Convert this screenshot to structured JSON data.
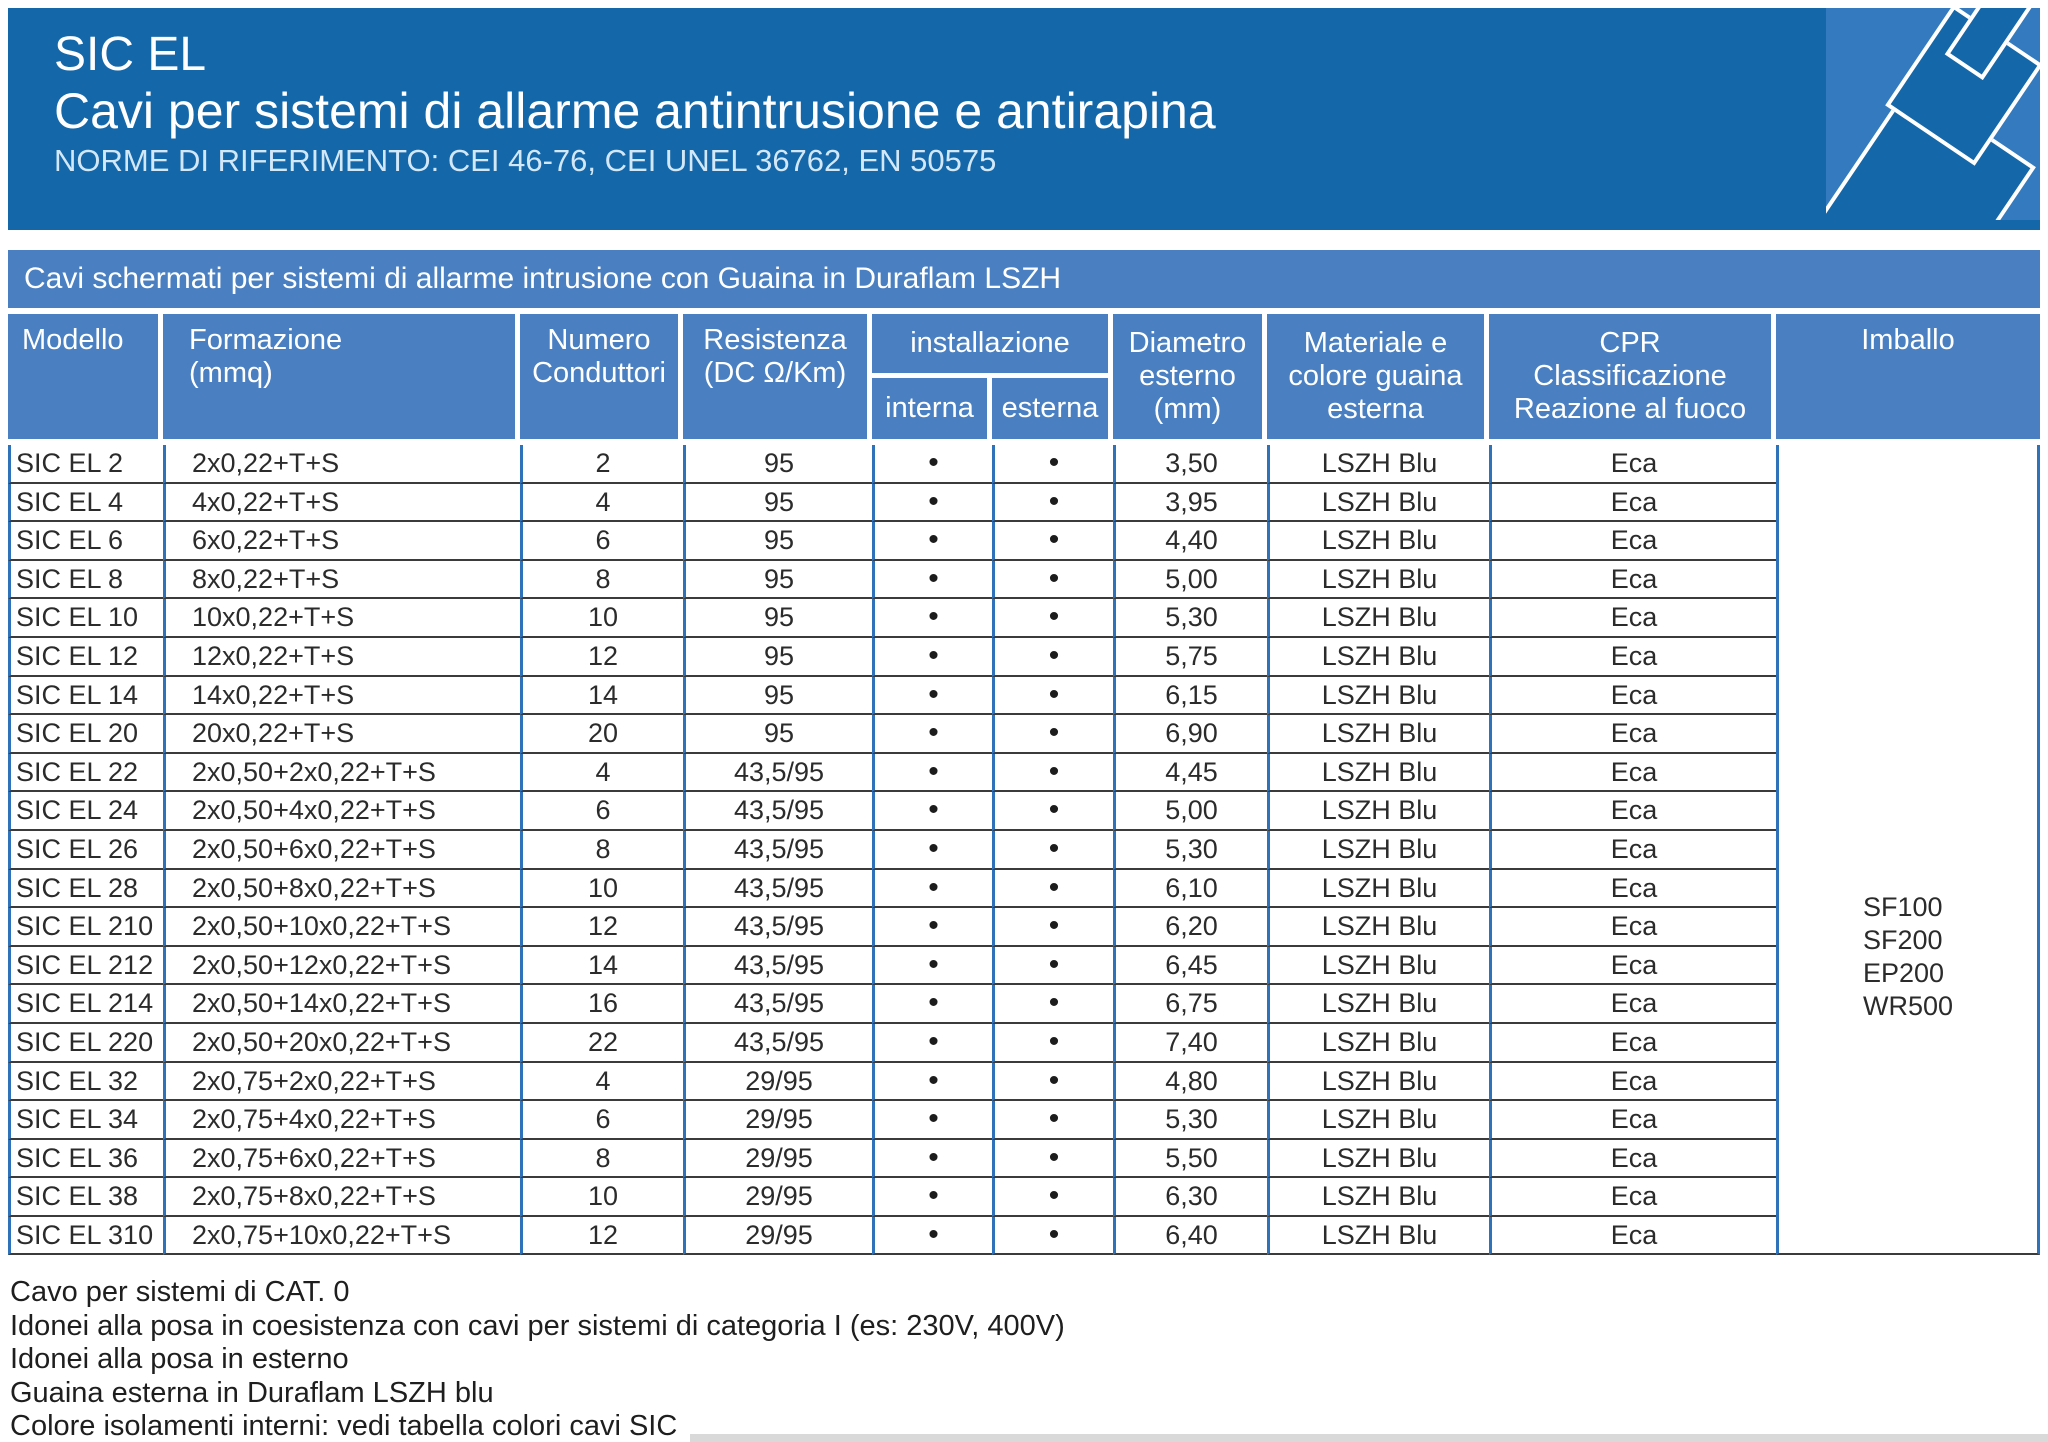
{
  "header": {
    "title": "SIC EL",
    "subtitle": "Cavi per sistemi di allarme antintrusione e antirapina",
    "norms": "NORME DI RIFERIMENTO: CEI 46-76, CEI UNEL 36762, EN 50575"
  },
  "section_band": "Cavi schermati per sistemi di allarme intrusione con Guaina in Duraflam LSZH",
  "table": {
    "headers": {
      "modello": "Modello",
      "formazione": "Formazione\n(mmq)",
      "numero_conduttori": "Numero\nConduttori",
      "resistenza": "Resistenza\n(DC Ω/Km)",
      "installazione": "installazione",
      "interna": "interna",
      "esterna": "esterna",
      "diametro": "Diametro\nesterno\n(mm)",
      "materiale": "Materiale e\ncolore guaina\nesterna",
      "cpr": "CPR\nClassificazione\nReazione al fuoco",
      "imballo": "Imballo"
    },
    "dot": "•",
    "rows": [
      [
        "SIC EL 2",
        "2x0,22+T+S",
        "2",
        "95",
        true,
        true,
        "3,50",
        "LSZH Blu",
        "Eca"
      ],
      [
        "SIC EL 4",
        "4x0,22+T+S",
        "4",
        "95",
        true,
        true,
        "3,95",
        "LSZH Blu",
        "Eca"
      ],
      [
        "SIC EL 6",
        "6x0,22+T+S",
        "6",
        "95",
        true,
        true,
        "4,40",
        "LSZH Blu",
        "Eca"
      ],
      [
        "SIC EL 8",
        "8x0,22+T+S",
        "8",
        "95",
        true,
        true,
        "5,00",
        "LSZH Blu",
        "Eca"
      ],
      [
        "SIC EL 10",
        "10x0,22+T+S",
        "10",
        "95",
        true,
        true,
        "5,30",
        "LSZH Blu",
        "Eca"
      ],
      [
        "SIC EL 12",
        "12x0,22+T+S",
        "12",
        "95",
        true,
        true,
        "5,75",
        "LSZH Blu",
        "Eca"
      ],
      [
        "SIC EL 14",
        "14x0,22+T+S",
        "14",
        "95",
        true,
        true,
        "6,15",
        "LSZH Blu",
        "Eca"
      ],
      [
        "SIC EL 20",
        "20x0,22+T+S",
        "20",
        "95",
        true,
        true,
        "6,90",
        "LSZH Blu",
        "Eca"
      ],
      [
        "SIC EL 22",
        "2x0,50+2x0,22+T+S",
        "4",
        "43,5/95",
        true,
        true,
        "4,45",
        "LSZH Blu",
        "Eca"
      ],
      [
        "SIC EL 24",
        "2x0,50+4x0,22+T+S",
        "6",
        "43,5/95",
        true,
        true,
        "5,00",
        "LSZH Blu",
        "Eca"
      ],
      [
        "SIC EL 26",
        "2x0,50+6x0,22+T+S",
        "8",
        "43,5/95",
        true,
        true,
        "5,30",
        "LSZH Blu",
        "Eca"
      ],
      [
        "SIC EL 28",
        "2x0,50+8x0,22+T+S",
        "10",
        "43,5/95",
        true,
        true,
        "6,10",
        "LSZH Blu",
        "Eca"
      ],
      [
        "SIC EL 210",
        "2x0,50+10x0,22+T+S",
        "12",
        "43,5/95",
        true,
        true,
        "6,20",
        "LSZH Blu",
        "Eca"
      ],
      [
        "SIC EL 212",
        "2x0,50+12x0,22+T+S",
        "14",
        "43,5/95",
        true,
        true,
        "6,45",
        "LSZH Blu",
        "Eca"
      ],
      [
        "SIC EL 214",
        "2x0,50+14x0,22+T+S",
        "16",
        "43,5/95",
        true,
        true,
        "6,75",
        "LSZH Blu",
        "Eca"
      ],
      [
        "SIC EL 220",
        "2x0,50+20x0,22+T+S",
        "22",
        "43,5/95",
        true,
        true,
        "7,40",
        "LSZH Blu",
        "Eca"
      ],
      [
        "SIC EL 32",
        "2x0,75+2x0,22+T+S",
        "4",
        "29/95",
        true,
        true,
        "4,80",
        "LSZH Blu",
        "Eca"
      ],
      [
        "SIC EL 34",
        "2x0,75+4x0,22+T+S",
        "6",
        "29/95",
        true,
        true,
        "5,30",
        "LSZH Blu",
        "Eca"
      ],
      [
        "SIC EL 36",
        "2x0,75+6x0,22+T+S",
        "8",
        "29/95",
        true,
        true,
        "5,50",
        "LSZH Blu",
        "Eca"
      ],
      [
        "SIC EL 38",
        "2x0,75+8x0,22+T+S",
        "10",
        "29/95",
        true,
        true,
        "6,30",
        "LSZH Blu",
        "Eca"
      ],
      [
        "SIC EL 310",
        "2x0,75+10x0,22+T+S",
        "12",
        "29/95",
        true,
        true,
        "6,40",
        "LSZH Blu",
        "Eca"
      ]
    ],
    "imballo_values": [
      "SF100",
      "SF200",
      "EP200",
      "WR500"
    ]
  },
  "notes": [
    "Cavo per sistemi di CAT. 0",
    "Idonei alla posa in coesistenza con cavi per sistemi di categoria I (es: 230V, 400V)",
    "Idonei alla posa in esterno",
    "Guaina esterna in Duraflam LSZH blu",
    "Colore isolamenti interni: vedi tabella colori cavi SIC"
  ],
  "colors": {
    "header_blue": "#1467a9",
    "band_blue": "#4a80c2",
    "grid_line_blue": "#2f72ba",
    "row_line_dark": "#3b3b3b",
    "illustration_blue": "#337abf"
  }
}
